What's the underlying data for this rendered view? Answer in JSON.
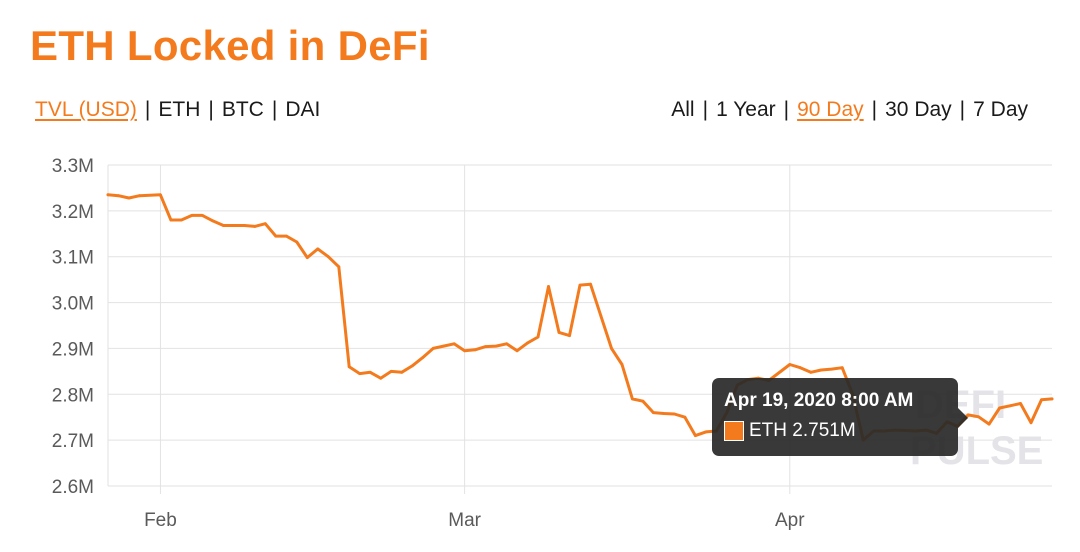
{
  "header": {
    "title": "ETH Locked in DeFi",
    "unit_tabs": [
      {
        "label": "TVL (USD)",
        "active": true
      },
      {
        "label": "ETH",
        "active": false
      },
      {
        "label": "BTC",
        "active": false
      },
      {
        "label": "DAI",
        "active": false
      }
    ],
    "range_tabs": [
      {
        "label": "All",
        "active": false
      },
      {
        "label": "1 Year",
        "active": false
      },
      {
        "label": "90 Day",
        "active": true
      },
      {
        "label": "30 Day",
        "active": false
      },
      {
        "label": "7 Day",
        "active": false
      }
    ],
    "separator": "|"
  },
  "tooltip": {
    "date": "Apr 19, 2020 8:00 AM",
    "series_label": "ETH 2.751M"
  },
  "watermark": {
    "line1": "DEFI",
    "line2": "PULSE"
  },
  "colors": {
    "accent": "#f37b1d",
    "grid": "#e2e2e2",
    "tick_text": "#5a5a5a"
  },
  "chart_data": {
    "type": "line",
    "x_axis": {
      "type": "date",
      "min": "2020-01-27",
      "max": "2020-04-26",
      "ticks": [
        {
          "date": "2020-02-01",
          "label": "Feb"
        },
        {
          "date": "2020-03-01",
          "label": "Mar"
        },
        {
          "date": "2020-04-01",
          "label": "Apr"
        }
      ]
    },
    "y_axis": {
      "min": 2.6,
      "max": 3.3,
      "unit": "M",
      "ticks": [
        {
          "value": 2.6,
          "label": "2.6M"
        },
        {
          "value": 2.7,
          "label": "2.7M"
        },
        {
          "value": 2.8,
          "label": "2.8M"
        },
        {
          "value": 2.9,
          "label": "2.9M"
        },
        {
          "value": 3.0,
          "label": "3.0M"
        },
        {
          "value": 3.1,
          "label": "3.1M"
        },
        {
          "value": 3.2,
          "label": "3.2M"
        },
        {
          "value": 3.3,
          "label": "3.3M"
        }
      ]
    },
    "grid": true,
    "legend": "none",
    "series": [
      {
        "name": "ETH",
        "color": "#f37b1d",
        "points": [
          [
            "2020-01-27",
            3.235
          ],
          [
            "2020-01-28",
            3.233
          ],
          [
            "2020-01-29",
            3.228
          ],
          [
            "2020-01-30",
            3.233
          ],
          [
            "2020-02-01",
            3.235
          ],
          [
            "2020-02-02",
            3.18
          ],
          [
            "2020-02-03",
            3.18
          ],
          [
            "2020-02-04",
            3.19
          ],
          [
            "2020-02-05",
            3.19
          ],
          [
            "2020-02-06",
            3.178
          ],
          [
            "2020-02-07",
            3.168
          ],
          [
            "2020-02-08",
            3.168
          ],
          [
            "2020-02-09",
            3.168
          ],
          [
            "2020-02-10",
            3.166
          ],
          [
            "2020-02-11",
            3.172
          ],
          [
            "2020-02-12",
            3.145
          ],
          [
            "2020-02-13",
            3.145
          ],
          [
            "2020-02-14",
            3.132
          ],
          [
            "2020-02-15",
            3.098
          ],
          [
            "2020-02-16",
            3.117
          ],
          [
            "2020-02-17",
            3.1
          ],
          [
            "2020-02-18",
            3.078
          ],
          [
            "2020-02-19",
            2.86
          ],
          [
            "2020-02-20",
            2.845
          ],
          [
            "2020-02-21",
            2.848
          ],
          [
            "2020-02-22",
            2.835
          ],
          [
            "2020-02-23",
            2.85
          ],
          [
            "2020-02-24",
            2.848
          ],
          [
            "2020-02-25",
            2.862
          ],
          [
            "2020-02-26",
            2.88
          ],
          [
            "2020-02-27",
            2.9
          ],
          [
            "2020-02-28",
            2.905
          ],
          [
            "2020-02-29",
            2.91
          ],
          [
            "2020-03-01",
            2.895
          ],
          [
            "2020-03-02",
            2.897
          ],
          [
            "2020-03-03",
            2.904
          ],
          [
            "2020-03-04",
            2.905
          ],
          [
            "2020-03-05",
            2.91
          ],
          [
            "2020-03-06",
            2.895
          ],
          [
            "2020-03-07",
            2.912
          ],
          [
            "2020-03-08",
            2.925
          ],
          [
            "2020-03-09",
            3.035
          ],
          [
            "2020-03-10",
            2.935
          ],
          [
            "2020-03-11",
            2.928
          ],
          [
            "2020-03-12",
            3.038
          ],
          [
            "2020-03-13",
            3.04
          ],
          [
            "2020-03-14",
            2.97
          ],
          [
            "2020-03-15",
            2.9
          ],
          [
            "2020-03-16",
            2.865
          ],
          [
            "2020-03-17",
            2.79
          ],
          [
            "2020-03-18",
            2.785
          ],
          [
            "2020-03-19",
            2.76
          ],
          [
            "2020-03-20",
            2.758
          ],
          [
            "2020-03-21",
            2.757
          ],
          [
            "2020-03-22",
            2.75
          ],
          [
            "2020-03-23",
            2.71
          ],
          [
            "2020-03-24",
            2.718
          ],
          [
            "2020-03-25",
            2.72
          ],
          [
            "2020-03-26",
            2.76
          ],
          [
            "2020-03-27",
            2.82
          ],
          [
            "2020-03-28",
            2.832
          ],
          [
            "2020-03-29",
            2.835
          ],
          [
            "2020-03-30",
            2.83
          ],
          [
            "2020-04-01",
            2.865
          ],
          [
            "2020-04-02",
            2.858
          ],
          [
            "2020-04-03",
            2.848
          ],
          [
            "2020-04-04",
            2.853
          ],
          [
            "2020-04-05",
            2.855
          ],
          [
            "2020-04-06",
            2.858
          ],
          [
            "2020-04-07",
            2.8
          ],
          [
            "2020-04-08",
            2.7
          ],
          [
            "2020-04-09",
            2.72
          ],
          [
            "2020-04-10",
            2.72
          ],
          [
            "2020-04-11",
            2.722
          ],
          [
            "2020-04-12",
            2.721
          ],
          [
            "2020-04-13",
            2.72
          ],
          [
            "2020-04-14",
            2.722
          ],
          [
            "2020-04-15",
            2.715
          ],
          [
            "2020-04-16",
            2.74
          ],
          [
            "2020-04-17",
            2.73
          ],
          [
            "2020-04-18",
            2.755
          ],
          [
            "2020-04-19",
            2.751
          ],
          [
            "2020-04-20",
            2.735
          ],
          [
            "2020-04-21",
            2.77
          ],
          [
            "2020-04-22",
            2.775
          ],
          [
            "2020-04-23",
            2.78
          ],
          [
            "2020-04-24",
            2.738
          ],
          [
            "2020-04-25",
            2.788
          ],
          [
            "2020-04-26",
            2.79
          ]
        ]
      }
    ]
  }
}
